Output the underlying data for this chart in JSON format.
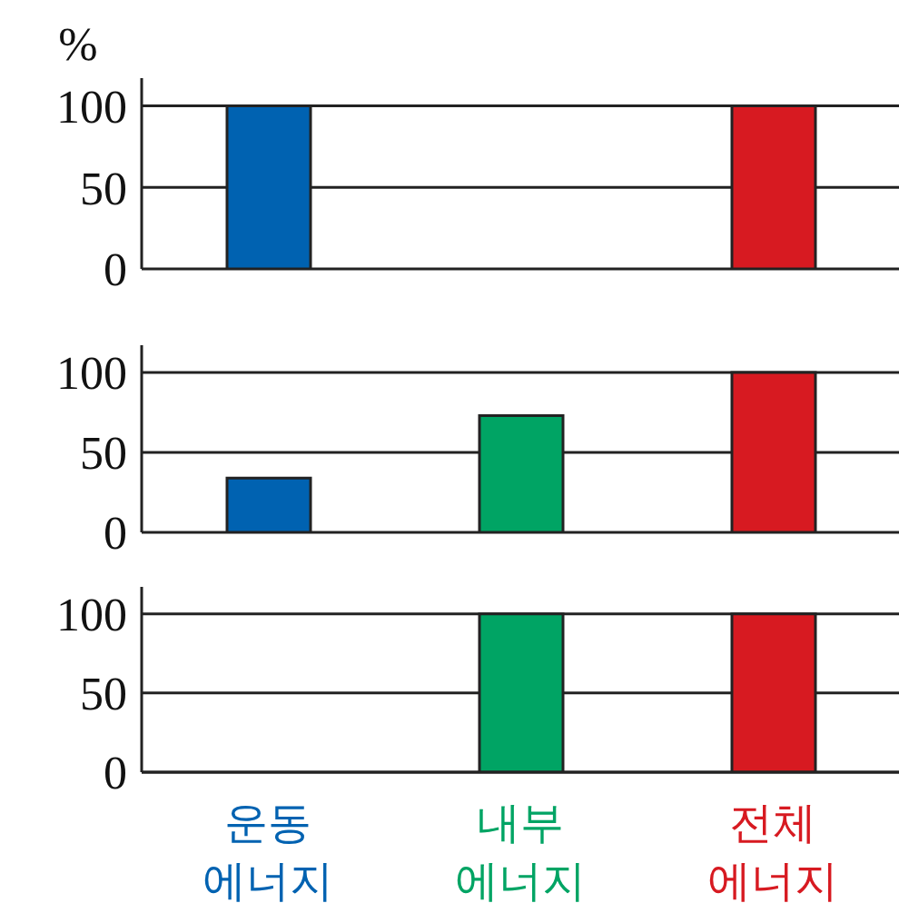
{
  "chart_data": [
    {
      "type": "bar",
      "ylabel": "%",
      "categories": [
        null,
        null,
        null
      ],
      "values": [
        100,
        0,
        100
      ],
      "colors": [
        "#0062b1",
        "#00a464",
        "#d71a21"
      ],
      "ylim": [
        0,
        117
      ],
      "yticks": [
        0,
        50,
        100
      ],
      "grid": "y",
      "tick_labels": "y"
    },
    {
      "type": "bar",
      "categories": [
        null,
        null,
        null
      ],
      "values": [
        34,
        73,
        100
      ],
      "colors": [
        "#0062b1",
        "#00a464",
        "#d71a21"
      ],
      "ylim": [
        0,
        117
      ],
      "yticks": [
        0,
        50,
        100
      ],
      "grid": "y",
      "tick_labels": "y"
    },
    {
      "type": "bar",
      "categories": [
        "운동 에너지",
        "내부 에너지",
        "전체 에너지"
      ],
      "values": [
        0,
        100,
        100
      ],
      "colors": [
        "#0062b1",
        "#00a464",
        "#d71a21"
      ],
      "ylim": [
        0,
        117
      ],
      "yticks": [
        0,
        50,
        100
      ],
      "grid": "y"
    }
  ]
}
